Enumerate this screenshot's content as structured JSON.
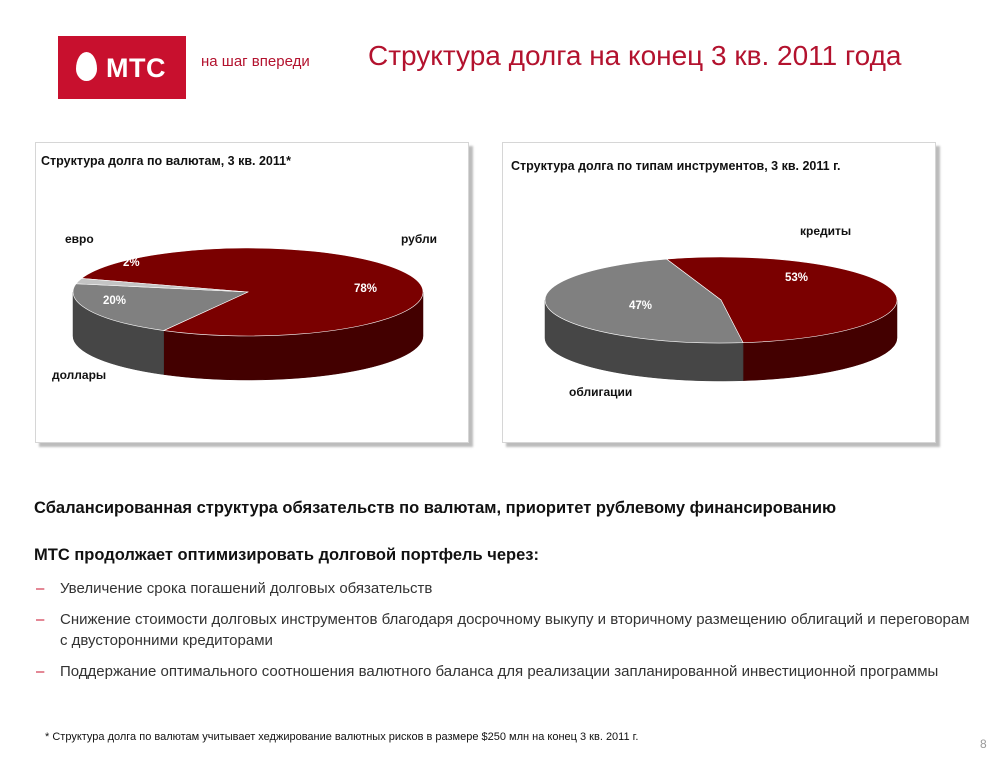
{
  "header": {
    "logo_text": "МТС",
    "tagline": "на шаг впереди",
    "title": "Структура долга на конец 3 кв. 2011 года"
  },
  "chart_data": [
    {
      "type": "pie",
      "title": "Структура долга по валютам, 3 кв. 2011*",
      "categories": [
        "рубли",
        "доллары",
        "евро"
      ],
      "values": [
        78,
        20,
        2
      ],
      "value_labels": [
        "78%",
        "20%",
        "2%"
      ],
      "colors": [
        "#7a0000",
        "#808080",
        "#c4c4c4"
      ],
      "style": "3d"
    },
    {
      "type": "pie",
      "title": "Структура долга по типам инструментов, 3 кв. 2011 г.",
      "categories": [
        "кредиты",
        "облигации"
      ],
      "values": [
        53,
        47
      ],
      "value_labels": [
        "53%",
        "47%"
      ],
      "colors": [
        "#7a0000",
        "#808080"
      ],
      "style": "3d"
    }
  ],
  "body": {
    "headline1": "Сбалансированная структура обязательств по валютам, приоритет рублевому финансированию",
    "headline2": "МТС продолжает оптимизировать долговой портфель через:",
    "bullet_marker": "–",
    "bullets": [
      "Увеличение срока погашений долговых обязательств",
      "Снижение стоимости долговых инструментов благодаря досрочному выкупу и вторичному размещению облигаций и переговорам с двусторонними кредиторами",
      "Поддержание оптимального соотношения  валютного баланса для реализации запланированной инвестиционной программы"
    ],
    "footnote": "* Структура долга по валютам учитывает хеджирование валютных рисков в размере $250 млн на конец 3 кв. 2011 г.",
    "page_number": "8"
  }
}
